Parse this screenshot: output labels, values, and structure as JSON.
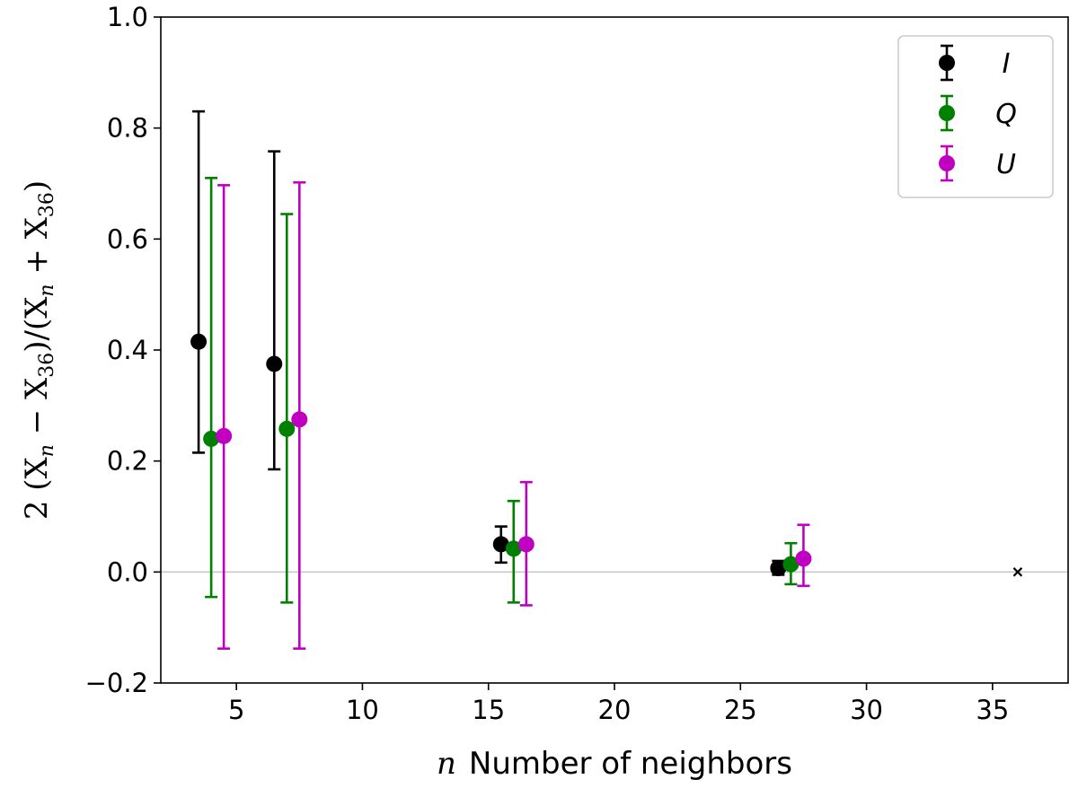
{
  "chart_data": {
    "type": "scatter",
    "title": "",
    "xlabel_var": "n",
    "xlabel_text": "Number of neighbors",
    "ylabel": "2 (X",
    "ylabel_sub1": "n",
    "ylabel_mid": " − X",
    "ylabel_sub2": "36",
    "ylabel_mid2": ")/(X",
    "ylabel_sub3": "n",
    "ylabel_mid3": " + X",
    "ylabel_sub4": "36",
    "ylabel_end": ")",
    "xlim": [
      2,
      38
    ],
    "ylim": [
      -0.2,
      1.0
    ],
    "xticks": [
      5,
      10,
      15,
      20,
      25,
      30,
      35
    ],
    "xtick_labels": [
      "5",
      "10",
      "15",
      "20",
      "25",
      "30",
      "35"
    ],
    "yticks": [
      -0.2,
      0.0,
      0.2,
      0.4,
      0.6,
      0.8,
      1.0
    ],
    "ytick_labels": [
      "−0.2",
      "0.0",
      "0.2",
      "0.4",
      "0.6",
      "0.8",
      "1.0"
    ],
    "reference_line_y": 0.0,
    "grid": false,
    "legend_position": "top-right",
    "series": [
      {
        "name": "I",
        "color": "#000000",
        "points": [
          {
            "x": 3.5,
            "y": 0.415,
            "ylow": 0.215,
            "yhigh": 0.83
          },
          {
            "x": 6.5,
            "y": 0.375,
            "ylow": 0.185,
            "yhigh": 0.758
          },
          {
            "x": 15.5,
            "y": 0.05,
            "ylow": 0.017,
            "yhigh": 0.082
          },
          {
            "x": 26.5,
            "y": 0.007,
            "ylow": -0.005,
            "yhigh": 0.02
          }
        ]
      },
      {
        "name": "Q",
        "color": "#008000",
        "points": [
          {
            "x": 4.0,
            "y": 0.24,
            "ylow": -0.045,
            "yhigh": 0.71
          },
          {
            "x": 7.0,
            "y": 0.258,
            "ylow": -0.055,
            "yhigh": 0.645
          },
          {
            "x": 16.0,
            "y": 0.042,
            "ylow": -0.055,
            "yhigh": 0.128
          },
          {
            "x": 27.0,
            "y": 0.014,
            "ylow": -0.022,
            "yhigh": 0.052
          }
        ]
      },
      {
        "name": "U",
        "color": "#c000c0",
        "points": [
          {
            "x": 4.5,
            "y": 0.245,
            "ylow": -0.138,
            "yhigh": 0.697
          },
          {
            "x": 7.5,
            "y": 0.275,
            "ylow": -0.138,
            "yhigh": 0.702
          },
          {
            "x": 16.5,
            "y": 0.05,
            "ylow": -0.06,
            "yhigh": 0.162
          },
          {
            "x": 27.5,
            "y": 0.024,
            "ylow": -0.025,
            "yhigh": 0.085
          }
        ]
      }
    ],
    "reference_marker": {
      "x": 36,
      "y": 0.0,
      "symbol": "x",
      "color": "#000000"
    }
  }
}
